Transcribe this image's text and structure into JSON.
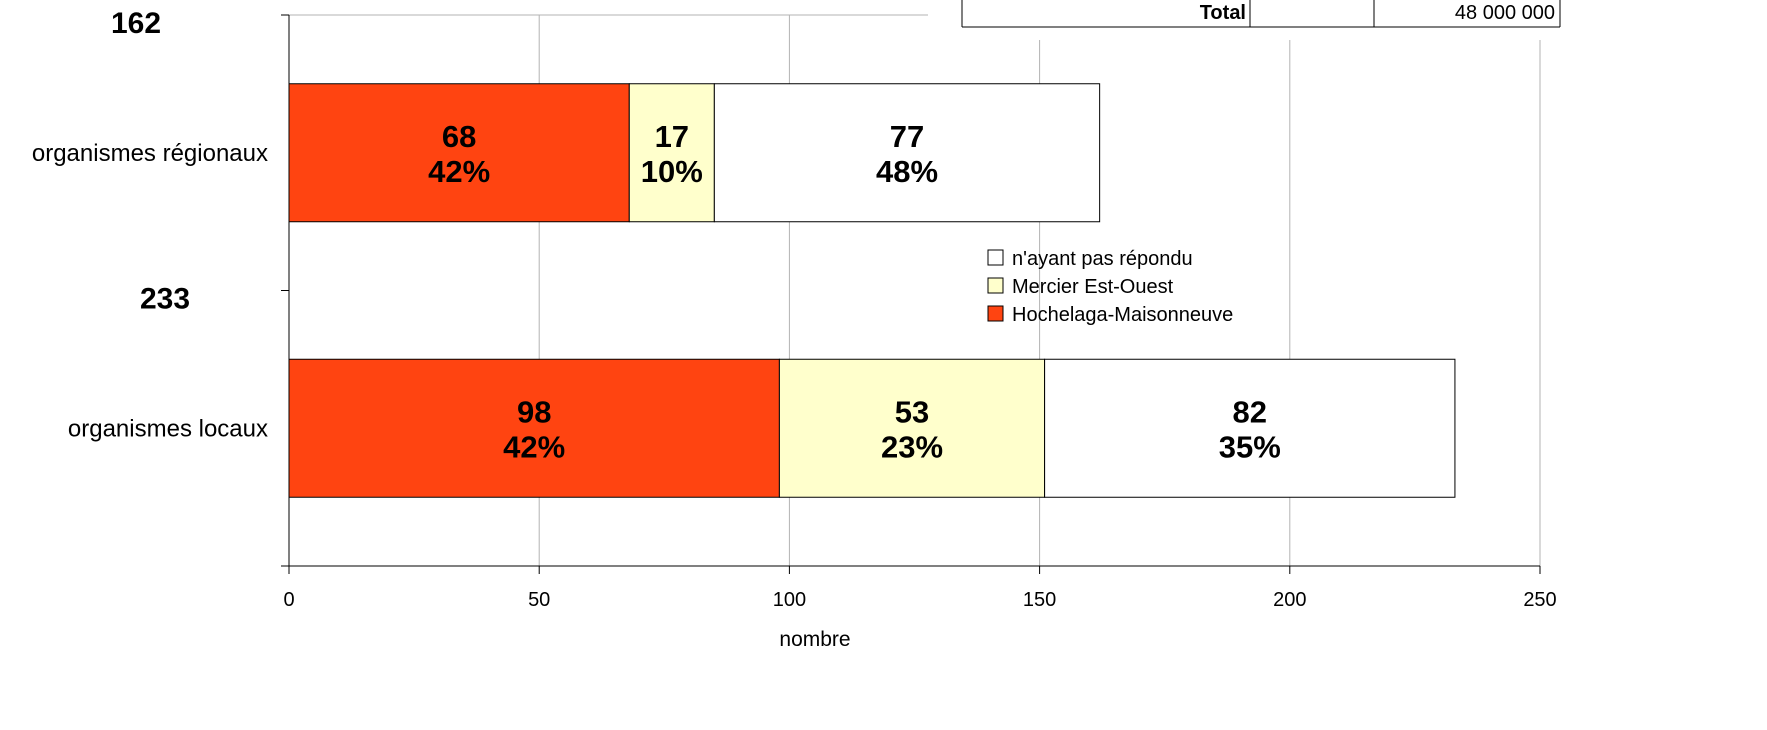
{
  "chart_data": {
    "type": "bar",
    "orientation": "horizontal",
    "stacked": true,
    "xlabel": "nombre",
    "ylabel": "",
    "xlim": [
      0,
      250
    ],
    "x_ticks": [
      "0",
      "50",
      "100",
      "150",
      "200",
      "250"
    ],
    "grid": true,
    "categories": [
      "organismes régionaux",
      "organismes locaux"
    ],
    "category_totals": [
      "162",
      "233"
    ],
    "series": [
      {
        "name": "Hochelaga-Maisonneuve",
        "color": "#ff4411",
        "values": [
          68,
          98
        ],
        "labels": [
          "68",
          "98"
        ],
        "percents": [
          "42%",
          "42%"
        ]
      },
      {
        "name": "Mercier Est-Ouest",
        "color": "#ffffcc",
        "values": [
          17,
          53
        ],
        "labels": [
          "17",
          "53"
        ],
        "percents": [
          "10%",
          "23%"
        ]
      },
      {
        "name": "n'ayant pas répondu",
        "color": "#ffffff",
        "values": [
          77,
          82
        ],
        "labels": [
          "77",
          "82"
        ],
        "percents": [
          "48%",
          "35%"
        ]
      }
    ],
    "legend_order": [
      "n'ayant pas répondu",
      "Mercier Est-Ouest",
      "Hochelaga-Maisonneuve"
    ],
    "legend_position": "right-center",
    "table_fragment": {
      "label": "Total",
      "empty_cell": "",
      "value": "48 000 000"
    }
  }
}
